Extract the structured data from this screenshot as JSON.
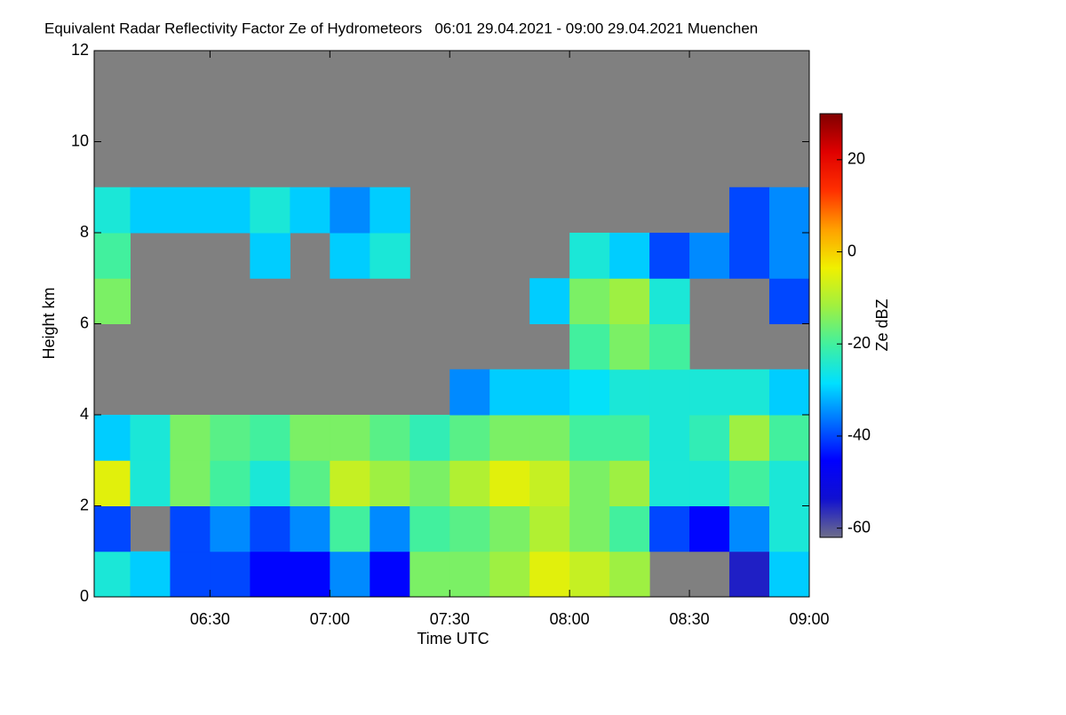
{
  "chart_data": {
    "type": "heatmap",
    "title": "Equivalent Radar Reflectivity Factor Ze of Hydrometeors   06:01 29.04.2021 - 09:00 29.04.2021 Muenchen",
    "x_label": "Time UTC",
    "y_label": "Height km",
    "colorbar_label": "Ze dBZ",
    "xlim": [
      361,
      540
    ],
    "xticks": [
      {
        "value": 390,
        "label": "06:30"
      },
      {
        "value": 420,
        "label": "07:00"
      },
      {
        "value": 450,
        "label": "07:30"
      },
      {
        "value": 480,
        "label": "08:00"
      },
      {
        "value": 510,
        "label": "08:30"
      },
      {
        "value": 540,
        "label": "09:00"
      }
    ],
    "ylim": [
      0,
      12
    ],
    "yticks": [
      0,
      2,
      4,
      6,
      8,
      10,
      12
    ],
    "zlim": [
      -62,
      30
    ],
    "zticks": [
      -60,
      -40,
      -20,
      0,
      20
    ],
    "background_color": "#808080",
    "colormap": [
      "#6e6e8a",
      "#1010d0",
      "#0000ff",
      "#0070ff",
      "#00e0ff",
      "#40f0a0",
      "#a0f040",
      "#f0f000",
      "#ffa000",
      "#ff3000",
      "#e00000",
      "#800000"
    ],
    "x_edges": [
      361,
      370,
      380,
      390,
      400,
      410,
      420,
      430,
      440,
      450,
      460,
      470,
      480,
      490,
      500,
      510,
      520,
      530,
      540
    ],
    "y_edges": [
      0,
      1,
      2,
      3,
      4,
      5,
      6,
      7,
      8,
      9
    ],
    "z": [
      [
        -25,
        -30,
        -40,
        -40,
        -45,
        -45,
        -35,
        -45,
        -15,
        -15,
        -12,
        -5,
        -8,
        -12,
        null,
        null,
        -55,
        -30
      ],
      [
        -40,
        null,
        -40,
        -35,
        -40,
        -35,
        -20,
        -35,
        -20,
        -18,
        -15,
        -10,
        -15,
        -20,
        -40,
        -45,
        -35,
        -25
      ],
      [
        -5,
        -25,
        -15,
        -20,
        -25,
        -18,
        -8,
        -12,
        -15,
        -10,
        -5,
        -8,
        -15,
        -12,
        -25,
        -25,
        -20,
        -25
      ],
      [
        -30,
        -25,
        -15,
        -18,
        -20,
        -15,
        -15,
        -18,
        -22,
        -18,
        -15,
        -15,
        -20,
        -20,
        -25,
        -22,
        -12,
        -20
      ],
      [
        null,
        null,
        null,
        null,
        null,
        null,
        null,
        null,
        null,
        -35,
        -30,
        -30,
        -28,
        -25,
        -25,
        -25,
        -25,
        -30
      ],
      [
        null,
        null,
        null,
        null,
        null,
        null,
        null,
        null,
        null,
        null,
        null,
        null,
        -20,
        -15,
        -20,
        null,
        null,
        null
      ],
      [
        -15,
        null,
        null,
        null,
        null,
        null,
        null,
        null,
        null,
        null,
        null,
        -30,
        -15,
        -12,
        -25,
        null,
        null,
        -40
      ],
      [
        -20,
        null,
        null,
        null,
        -30,
        null,
        -30,
        -25,
        null,
        null,
        null,
        null,
        -25,
        -30,
        -40,
        -35,
        -40,
        -35
      ],
      [
        -25,
        -30,
        -30,
        -30,
        -25,
        -30,
        -35,
        -30,
        null,
        null,
        null,
        null,
        null,
        null,
        null,
        null,
        -40,
        -35
      ]
    ]
  }
}
